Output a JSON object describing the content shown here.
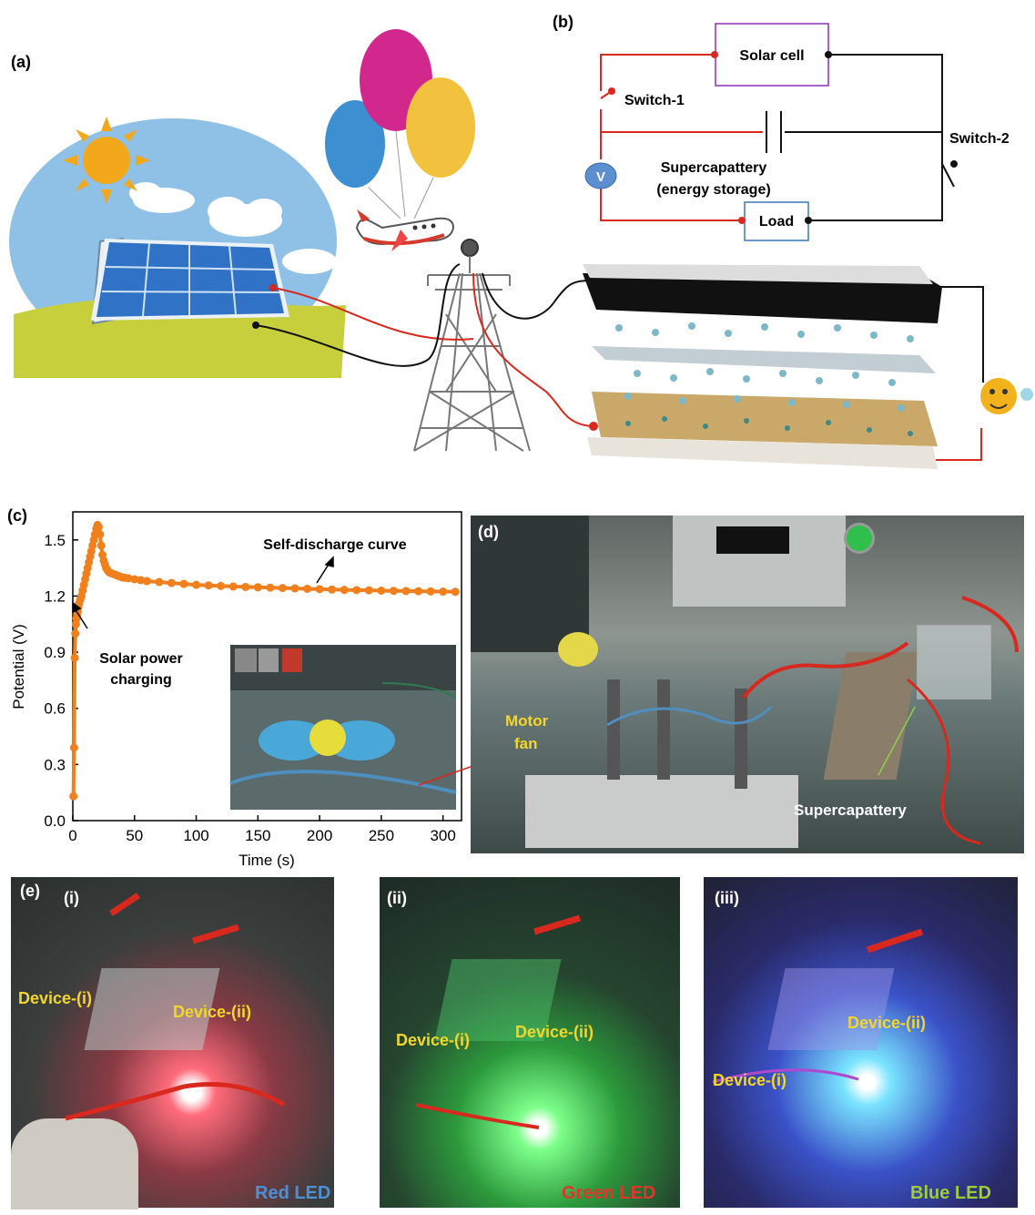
{
  "panels": {
    "a": "(a)",
    "b": "(b)",
    "c": "(c)",
    "d": "(d)",
    "e": "(e)"
  },
  "circuit": {
    "solar_cell": "Solar cell",
    "switch1": "Switch-1",
    "switch2": "Switch-2",
    "voltmeter": "V",
    "storage_line1": "Supercapattery",
    "storage_line2": "(energy storage)",
    "load": "Load"
  },
  "chart_data": {
    "type": "scatter",
    "xlabel": "Time (s)",
    "ylabel": "Potential (V)",
    "xlim": [
      0,
      315
    ],
    "ylim": [
      0,
      1.65
    ],
    "xticks": [
      0,
      50,
      100,
      150,
      200,
      250,
      300
    ],
    "yticks": [
      0.0,
      0.3,
      0.6,
      0.9,
      1.2,
      1.5
    ],
    "ytick_labels": [
      "0.0",
      "0.3",
      "0.6",
      "0.9",
      "1.2",
      "1.5"
    ],
    "series_color": "#f07f1e",
    "x": [
      0.5,
      1,
      1.5,
      2,
      2.5,
      3,
      3.5,
      4,
      4.5,
      5,
      6,
      7,
      8,
      9,
      10,
      11,
      12,
      13,
      14,
      15,
      16,
      17,
      18,
      19,
      20,
      21,
      22,
      23,
      24,
      25,
      26,
      27,
      28,
      29,
      30,
      32,
      34,
      36,
      38,
      40,
      42,
      45,
      50,
      55,
      60,
      70,
      80,
      90,
      100,
      110,
      120,
      130,
      140,
      150,
      160,
      170,
      180,
      190,
      200,
      210,
      220,
      230,
      240,
      250,
      260,
      270,
      280,
      290,
      300,
      310
    ],
    "y": [
      0.13,
      0.39,
      0.87,
      1.0,
      1.05,
      1.08,
      1.1,
      1.12,
      1.14,
      1.16,
      1.18,
      1.2,
      1.23,
      1.26,
      1.29,
      1.32,
      1.35,
      1.38,
      1.41,
      1.44,
      1.47,
      1.5,
      1.53,
      1.56,
      1.58,
      1.57,
      1.53,
      1.47,
      1.42,
      1.39,
      1.37,
      1.35,
      1.34,
      1.33,
      1.325,
      1.32,
      1.315,
      1.31,
      1.305,
      1.3,
      1.298,
      1.295,
      1.29,
      1.285,
      1.28,
      1.275,
      1.27,
      1.265,
      1.26,
      1.257,
      1.254,
      1.251,
      1.249,
      1.247,
      1.245,
      1.243,
      1.241,
      1.239,
      1.237,
      1.235,
      1.233,
      1.232,
      1.231,
      1.229,
      1.228,
      1.227,
      1.226,
      1.225,
      1.224,
      1.223
    ],
    "annotations": {
      "self_discharge": "Self-discharge curve",
      "solar_line1": "Solar power",
      "solar_line2": "charging"
    }
  },
  "photo_d": {
    "motor_line1": "Motor",
    "motor_line2": "fan",
    "supercapattery": "Supercapattery"
  },
  "photo_e": {
    "sub_i": "(i)",
    "sub_ii": "(ii)",
    "sub_iii": "(iii)",
    "device_i": "Device-(i)",
    "device_ii": "Device-(ii)",
    "red_led": "Red LED",
    "green_led": "Green LED",
    "blue_led": "Blue LED"
  },
  "colors": {
    "wire_red": "#d9281e",
    "wire_black": "#111111",
    "label_yellow": "#f2d62b",
    "red_led_text": "#4f8fd6",
    "green_led_text": "#e0362c",
    "blue_led_text": "#9ccc3c"
  }
}
